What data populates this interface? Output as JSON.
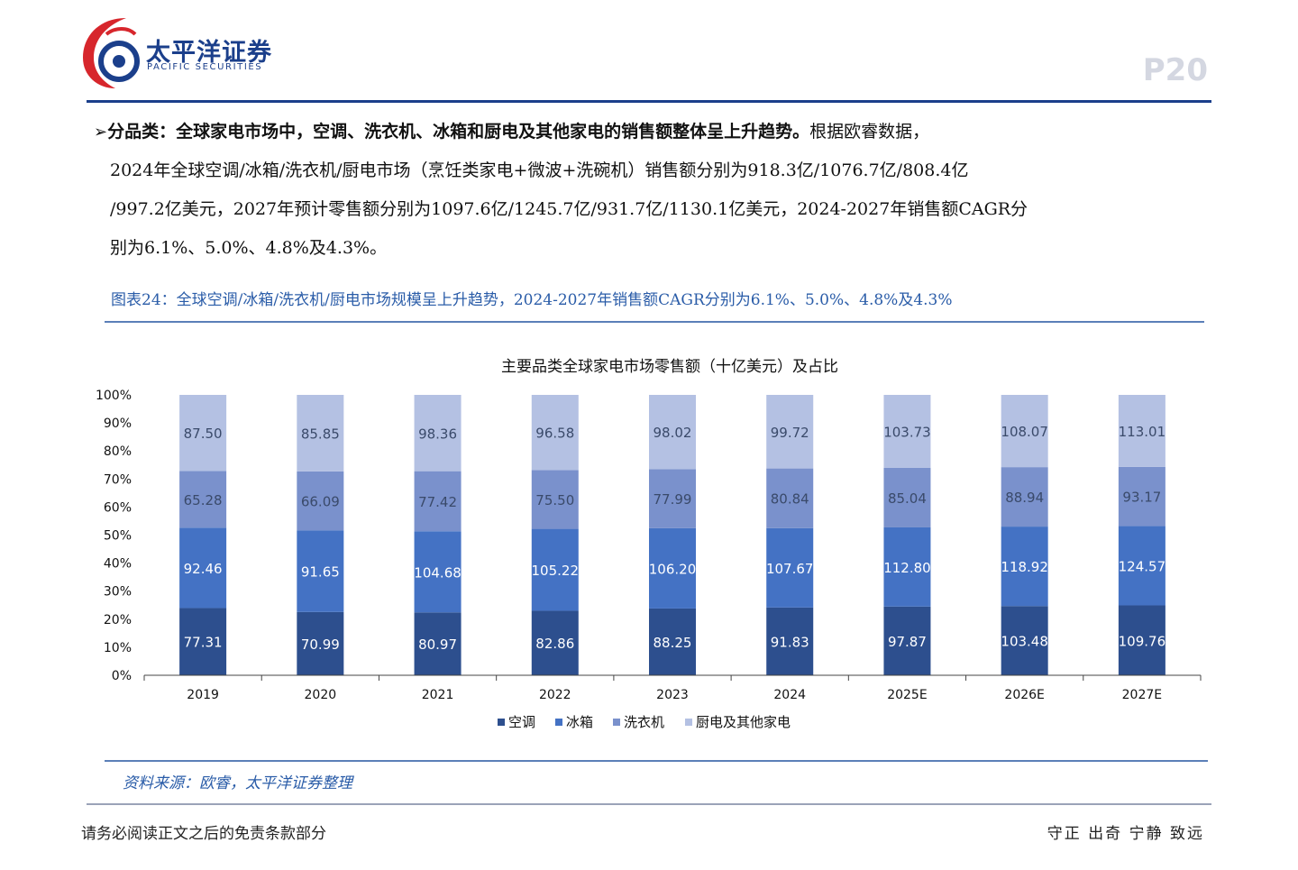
{
  "header": {
    "logo_cn": "太平洋证券",
    "logo_en": "PACIFIC SECURITIES",
    "page_number": "P20"
  },
  "colors": {
    "brand_blue": "#1b3f8b",
    "logo_red": "#d7262c",
    "ac": "#2d4f8e",
    "fridge": "#4472c4",
    "washer": "#7a91cc",
    "kitchen": "#b4c1e3",
    "caption": "#2a5ca8"
  },
  "text": {
    "bullet": "➢",
    "para1_bold": "分品类：全球家电市场中，空调、洗衣机、冰箱和厨电及其他家电的销售额整体呈上升趋势。",
    "para1_rest": "根据欧睿数据，",
    "para2": "2024年全球空调/冰箱/洗衣机/厨电市场（烹饪类家电+微波+洗碗机）销售额分别为918.3亿/1076.7亿/808.4亿",
    "para3": "/997.2亿美元，2027年预计零售额分别为1097.6亿/1245.7亿/931.7亿/1130.1亿美元，2024-2027年销售额CAGR分",
    "para4": "别为6.1%、5.0%、4.8%及4.3%。"
  },
  "figure": {
    "caption": "图表24：全球空调/冰箱/洗衣机/厨电市场规模呈上升趋势，2024-2027年销售额CAGR分别为6.1%、5.0%、4.8%及4.3%",
    "source": "资料来源：欧睿，太平洋证券整理"
  },
  "chart_data": {
    "type": "bar",
    "stacked": "percent",
    "title": "主要品类全球家电市场零售额（十亿美元）及占比",
    "categories": [
      "2019",
      "2020",
      "2021",
      "2022",
      "2023",
      "2024",
      "2025E",
      "2026E",
      "2027E"
    ],
    "series": [
      {
        "name": "空调",
        "values": [
          77.31,
          70.99,
          80.97,
          82.86,
          88.25,
          91.83,
          97.87,
          103.48,
          109.76
        ],
        "labels": [
          "77.31",
          "70.99",
          "80.97",
          "82.86",
          "88.25",
          "91.83",
          "97.87",
          "103.48",
          "109.76"
        ]
      },
      {
        "name": "冰箱",
        "values": [
          92.46,
          91.65,
          104.68,
          105.22,
          106.2,
          107.67,
          112.8,
          118.92,
          124.57
        ],
        "labels": [
          "92.46",
          "91.65",
          "104.68",
          "105.22",
          "106.20",
          "107.67",
          "112.80",
          "118.92",
          "124.57"
        ]
      },
      {
        "name": "洗衣机",
        "values": [
          65.28,
          66.09,
          77.42,
          75.5,
          77.99,
          80.84,
          85.04,
          88.94,
          93.17
        ],
        "labels": [
          "65.28",
          "66.09",
          "77.42",
          "75.50",
          "77.99",
          "80.84",
          "85.04",
          "88.94",
          "93.17"
        ]
      },
      {
        "name": "厨电及其他家电",
        "values": [
          87.5,
          85.85,
          98.36,
          96.58,
          98.02,
          99.72,
          103.73,
          108.07,
          113.01
        ],
        "labels": [
          "87.50",
          "85.85",
          "98.36",
          "96.58",
          "98.02",
          "99.72",
          "103.73",
          "108.07",
          "113.01"
        ]
      }
    ],
    "y_ticks": [
      "0%",
      "10%",
      "20%",
      "30%",
      "40%",
      "50%",
      "60%",
      "70%",
      "80%",
      "90%",
      "100%"
    ],
    "ylim": [
      0,
      100
    ],
    "grid": false,
    "legend": "bottom-center"
  },
  "footer": {
    "disclaimer": "请务必阅读正文之后的免责条款部分",
    "motto": "守正 出奇 宁静 致远"
  }
}
